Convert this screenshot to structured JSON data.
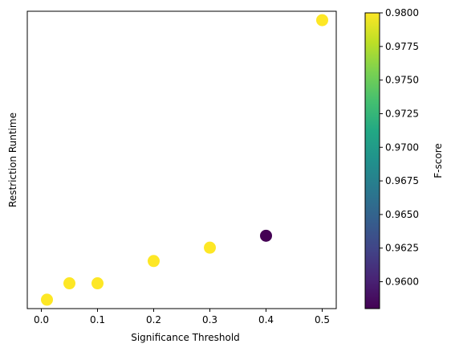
{
  "chart_data": {
    "type": "scatter",
    "xlabel": "Significance Threshold",
    "ylabel": "Restriction Runtime",
    "xlim": [
      -0.025,
      0.525
    ],
    "ylim": [
      0.0,
      1.0
    ],
    "x_ticks": [
      0.0,
      0.1,
      0.2,
      0.3,
      0.4,
      0.5
    ],
    "x_tick_labels": [
      "0.0",
      "0.1",
      "0.2",
      "0.3",
      "0.4",
      "0.5"
    ],
    "y_ticks_visible": false,
    "points": [
      {
        "x": 0.01,
        "y": 0.03,
        "fscore": 0.98
      },
      {
        "x": 0.05,
        "y": 0.085,
        "fscore": 0.98
      },
      {
        "x": 0.1,
        "y": 0.085,
        "fscore": 0.98
      },
      {
        "x": 0.2,
        "y": 0.16,
        "fscore": 0.98
      },
      {
        "x": 0.3,
        "y": 0.205,
        "fscore": 0.98
      },
      {
        "x": 0.4,
        "y": 0.245,
        "fscore": 0.958
      },
      {
        "x": 0.5,
        "y": 0.97,
        "fscore": 0.98
      }
    ],
    "colorbar": {
      "label": "F-score",
      "colormap": "viridis",
      "range": [
        0.958,
        0.98
      ],
      "ticks": [
        0.96,
        0.9625,
        0.965,
        0.9675,
        0.97,
        0.9725,
        0.975,
        0.9775,
        0.98
      ],
      "tick_labels": [
        "0.9600",
        "0.9625",
        "0.9650",
        "0.9675",
        "0.9700",
        "0.9725",
        "0.9750",
        "0.9775",
        "0.9800"
      ]
    },
    "grid": false
  }
}
